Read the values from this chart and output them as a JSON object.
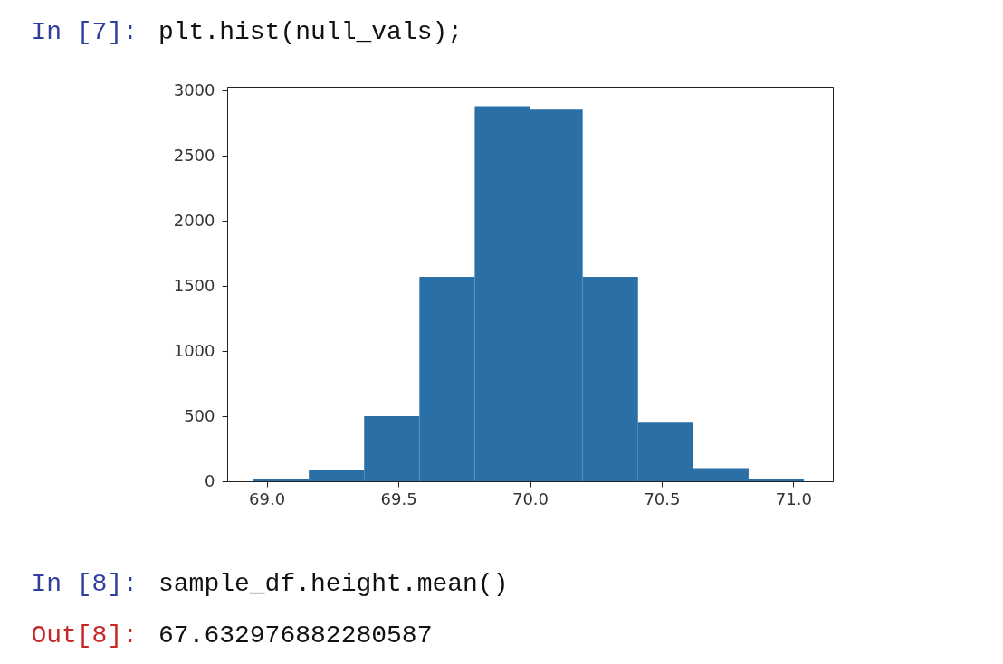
{
  "chart_data": {
    "type": "histogram",
    "bins": [
      68.95,
      69.16,
      69.37,
      69.58,
      69.79,
      70.0,
      70.2,
      70.41,
      70.62,
      70.83,
      71.04
    ],
    "values": [
      15,
      90,
      500,
      1570,
      2880,
      2855,
      1570,
      450,
      100,
      15
    ],
    "color": "#2a6fa5",
    "xlim": [
      68.85,
      71.15
    ],
    "ylim": [
      0,
      3030
    ],
    "xticks": [
      {
        "value": 69,
        "label": "69.0"
      },
      69.5,
      {
        "value": 70,
        "label": "70.0"
      },
      70.5,
      {
        "value": 71,
        "label": "71.0"
      }
    ],
    "yticks": [
      0,
      500,
      1000,
      1500,
      2000,
      2500,
      3000
    ],
    "grid": false,
    "annotations": [
      "In [7]:",
      "plt.hist(null_vals);",
      "In [8]:",
      "sample_df.height.mean()",
      "Out[8]:",
      "67.632976882280587"
    ]
  }
}
